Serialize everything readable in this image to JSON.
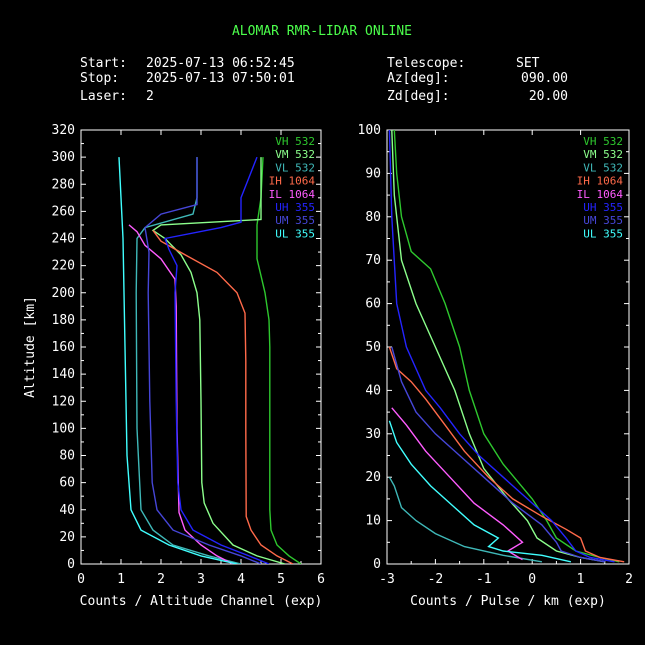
{
  "header": {
    "title": "ALOMAR RMR-LIDAR ONLINE",
    "start_label": "Start:",
    "start_value": "2025-07-13 06:52:45",
    "stop_label": "Stop:",
    "stop_value": "2025-07-13 07:50:01",
    "laser_label": "Laser:",
    "laser_value": "2",
    "telescope_label": "Telescope:",
    "telescope_value": "SET",
    "az_label": "Az[deg]:",
    "az_value": "090.00",
    "zd_label": "Zd[deg]:",
    "zd_value": "20.00"
  },
  "legend": [
    {
      "name": "VH 532",
      "color": "#2ec82e"
    },
    {
      "name": "VM 532",
      "color": "#8cff8c"
    },
    {
      "name": "VL 532",
      "color": "#3fb8b8"
    },
    {
      "name": "IH 1064",
      "color": "#ff6a4a"
    },
    {
      "name": "IL 1064",
      "color": "#ff5cff"
    },
    {
      "name": "UH 355",
      "color": "#2424ff"
    },
    {
      "name": "UM 355",
      "color": "#4646d8"
    },
    {
      "name": "UL 355",
      "color": "#40ffff"
    }
  ],
  "chart_data": [
    {
      "type": "line",
      "xlabel": "Counts / Altitude Channel (exp)",
      "ylabel": "Altitude [km]",
      "xlim": [
        0,
        6
      ],
      "ylim": [
        0,
        320
      ],
      "xticks": [
        "0",
        "1",
        "2",
        "3",
        "4",
        "5",
        "6"
      ],
      "yticks": [
        "0",
        "20",
        "40",
        "60",
        "80",
        "100",
        "120",
        "140",
        "160",
        "180",
        "200",
        "220",
        "240",
        "260",
        "280",
        "300",
        "320"
      ],
      "series": [
        {
          "name": "VH 532",
          "points": [
            [
              5.5,
              0
            ],
            [
              5.2,
              6
            ],
            [
              4.9,
              14
            ],
            [
              4.75,
              25
            ],
            [
              4.72,
              40
            ],
            [
              4.72,
              160
            ],
            [
              4.7,
              180
            ],
            [
              4.6,
              200
            ],
            [
              4.4,
              225
            ],
            [
              4.4,
              250
            ],
            [
              4.5,
              270
            ],
            [
              4.55,
              300
            ]
          ]
        },
        {
          "name": "VM 532",
          "points": [
            [
              5.1,
              0
            ],
            [
              4.4,
              6
            ],
            [
              3.8,
              14
            ],
            [
              3.3,
              30
            ],
            [
              3.08,
              45
            ],
            [
              3.02,
              60
            ],
            [
              3.0,
              120
            ],
            [
              2.97,
              180
            ],
            [
              2.9,
              200
            ],
            [
              2.75,
              215
            ],
            [
              2.5,
              228
            ],
            [
              2.1,
              240
            ],
            [
              1.8,
              246
            ],
            [
              2.0,
              250
            ],
            [
              4.5,
              254
            ],
            [
              4.5,
              300
            ]
          ]
        },
        {
          "name": "VL 532",
          "points": [
            [
              4.0,
              0
            ],
            [
              3.2,
              6
            ],
            [
              2.3,
              14
            ],
            [
              1.8,
              25
            ],
            [
              1.5,
              40
            ],
            [
              1.4,
              100
            ],
            [
              1.38,
              200
            ],
            [
              1.4,
              240
            ],
            [
              1.6,
              248
            ],
            [
              2.8,
              258
            ],
            [
              2.9,
              270
            ],
            [
              2.9,
              300
            ]
          ]
        },
        {
          "name": "IH 1064",
          "points": [
            [
              5.3,
              0
            ],
            [
              4.9,
              6
            ],
            [
              4.5,
              14
            ],
            [
              4.25,
              25
            ],
            [
              4.13,
              35
            ],
            [
              4.12,
              100
            ],
            [
              4.12,
              150
            ],
            [
              4.1,
              185
            ],
            [
              3.9,
              200
            ],
            [
              3.4,
              215
            ],
            [
              2.6,
              228
            ],
            [
              2.0,
              238
            ],
            [
              1.8,
              246
            ]
          ]
        },
        {
          "name": "IL 1064",
          "points": [
            [
              3.8,
              0
            ],
            [
              3.4,
              6
            ],
            [
              3.0,
              14
            ],
            [
              2.6,
              25
            ],
            [
              2.45,
              38
            ],
            [
              2.4,
              100
            ],
            [
              2.38,
              190
            ],
            [
              2.35,
              210
            ],
            [
              2.0,
              225
            ],
            [
              1.6,
              235
            ],
            [
              1.4,
              245
            ],
            [
              1.2,
              250
            ]
          ]
        },
        {
          "name": "UH 355",
          "points": [
            [
              4.7,
              0
            ],
            [
              4.2,
              6
            ],
            [
              3.5,
              14
            ],
            [
              2.8,
              25
            ],
            [
              2.5,
              40
            ],
            [
              2.42,
              60
            ],
            [
              2.38,
              120
            ],
            [
              2.35,
              200
            ],
            [
              2.4,
              220
            ],
            [
              2.2,
              232
            ],
            [
              2.1,
              240
            ],
            [
              3.5,
              248
            ],
            [
              4.0,
              252
            ],
            [
              4.0,
              270
            ],
            [
              4.2,
              285
            ],
            [
              4.4,
              300
            ]
          ]
        },
        {
          "name": "UM 355",
          "points": [
            [
              4.5,
              0
            ],
            [
              4.0,
              6
            ],
            [
              3.2,
              14
            ],
            [
              2.3,
              25
            ],
            [
              1.9,
              40
            ],
            [
              1.78,
              60
            ],
            [
              1.72,
              120
            ],
            [
              1.68,
              200
            ],
            [
              1.7,
              230
            ],
            [
              1.6,
              248
            ],
            [
              2.0,
              258
            ],
            [
              2.9,
              265
            ],
            [
              2.9,
              300
            ]
          ]
        },
        {
          "name": "UL 355",
          "points": [
            [
              3.9,
              0
            ],
            [
              3.0,
              6
            ],
            [
              2.2,
              14
            ],
            [
              1.5,
              25
            ],
            [
              1.25,
              40
            ],
            [
              1.15,
              80
            ],
            [
              1.1,
              160
            ],
            [
              1.05,
              240
            ],
            [
              1.0,
              270
            ],
            [
              0.95,
              300
            ]
          ]
        }
      ]
    },
    {
      "type": "line",
      "xlabel": "Counts / Pulse / km (exp)",
      "ylabel": "",
      "xlim": [
        -3,
        2
      ],
      "ylim": [
        0,
        100
      ],
      "xticks": [
        "-3",
        "-2",
        "-1",
        "0",
        "1",
        "2"
      ],
      "yticks": [
        "0",
        "10",
        "20",
        "30",
        "40",
        "50",
        "60",
        "70",
        "80",
        "90",
        "100"
      ],
      "series": [
        {
          "name": "VH 532",
          "points": [
            [
              1.8,
              0.5
            ],
            [
              1.4,
              1.5
            ],
            [
              0.9,
              3
            ],
            [
              0.5,
              6
            ],
            [
              0.3,
              10
            ],
            [
              0.0,
              15
            ],
            [
              -0.6,
              23
            ],
            [
              -1.0,
              30
            ],
            [
              -1.3,
              40
            ],
            [
              -1.5,
              50
            ],
            [
              -1.8,
              60
            ],
            [
              -2.1,
              68
            ],
            [
              -2.5,
              72
            ],
            [
              -2.7,
              80
            ],
            [
              -2.8,
              90
            ],
            [
              -2.85,
              100
            ]
          ]
        },
        {
          "name": "VM 532",
          "points": [
            [
              1.5,
              0.5
            ],
            [
              1.0,
              1.5
            ],
            [
              0.5,
              3
            ],
            [
              0.1,
              6
            ],
            [
              -0.1,
              10
            ],
            [
              -0.5,
              15
            ],
            [
              -1.0,
              22
            ],
            [
              -1.3,
              30
            ],
            [
              -1.6,
              40
            ],
            [
              -2.0,
              50
            ],
            [
              -2.4,
              60
            ],
            [
              -2.7,
              70
            ],
            [
              -2.85,
              85
            ],
            [
              -2.9,
              100
            ]
          ]
        },
        {
          "name": "VL 532",
          "points": [
            [
              0.2,
              0.5
            ],
            [
              -0.6,
              2
            ],
            [
              -1.4,
              4
            ],
            [
              -2.0,
              7
            ],
            [
              -2.4,
              10
            ],
            [
              -2.7,
              13
            ],
            [
              -2.85,
              18
            ],
            [
              -2.95,
              20
            ]
          ]
        },
        {
          "name": "IH 1064",
          "points": [
            [
              1.9,
              0.5
            ],
            [
              1.4,
              1.5
            ],
            [
              1.1,
              3
            ],
            [
              1.0,
              6
            ],
            [
              0.7,
              8
            ],
            [
              0.2,
              11
            ],
            [
              -0.4,
              15
            ],
            [
              -0.9,
              20
            ],
            [
              -1.4,
              26
            ],
            [
              -1.8,
              32
            ],
            [
              -2.2,
              38
            ],
            [
              -2.5,
              42
            ],
            [
              -2.8,
              45
            ],
            [
              -2.95,
              50
            ]
          ]
        },
        {
          "name": "IL 1064",
          "points": [
            [
              -0.2,
              1
            ],
            [
              -0.5,
              3
            ],
            [
              -0.2,
              5
            ],
            [
              -0.6,
              9
            ],
            [
              -1.2,
              14
            ],
            [
              -1.7,
              20
            ],
            [
              -2.2,
              26
            ],
            [
              -2.6,
              32
            ],
            [
              -2.9,
              36
            ]
          ]
        },
        {
          "name": "UH 355",
          "points": [
            [
              1.7,
              0.5
            ],
            [
              1.2,
              1.5
            ],
            [
              0.9,
              3
            ],
            [
              0.7,
              6
            ],
            [
              0.4,
              10
            ],
            [
              -0.1,
              15
            ],
            [
              -0.6,
              20
            ],
            [
              -1.1,
              25
            ],
            [
              -1.5,
              30
            ],
            [
              -1.9,
              36
            ],
            [
              -2.2,
              40
            ],
            [
              -2.6,
              50
            ],
            [
              -2.8,
              60
            ],
            [
              -2.9,
              80
            ],
            [
              -2.95,
              100
            ]
          ]
        },
        {
          "name": "UM 355",
          "points": [
            [
              1.5,
              0.5
            ],
            [
              1.0,
              1.5
            ],
            [
              0.6,
              3
            ],
            [
              0.5,
              5
            ],
            [
              0.2,
              9
            ],
            [
              -0.4,
              14
            ],
            [
              -1.0,
              20
            ],
            [
              -1.5,
              25
            ],
            [
              -2.0,
              30
            ],
            [
              -2.4,
              35
            ],
            [
              -2.7,
              42
            ],
            [
              -2.9,
              50
            ]
          ]
        },
        {
          "name": "UL 355",
          "points": [
            [
              0.8,
              0.5
            ],
            [
              0.2,
              2
            ],
            [
              -0.6,
              3
            ],
            [
              -0.9,
              4
            ],
            [
              -0.7,
              6
            ],
            [
              -1.2,
              9
            ],
            [
              -1.6,
              13
            ],
            [
              -2.1,
              18
            ],
            [
              -2.5,
              23
            ],
            [
              -2.8,
              28
            ],
            [
              -2.95,
              33
            ]
          ]
        }
      ]
    }
  ]
}
